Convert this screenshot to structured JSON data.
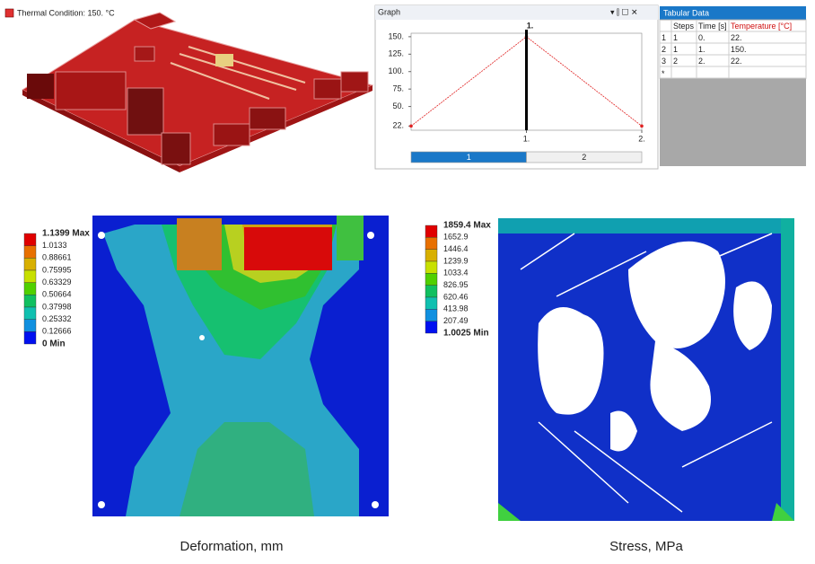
{
  "thermal_condition": {
    "label": "Thermal Condition: 150. °C",
    "color": "#e03030"
  },
  "graph": {
    "title": "Graph",
    "type": "line",
    "x": [
      0,
      1,
      2
    ],
    "values": [
      22,
      150,
      22
    ],
    "color": "#e02020",
    "xlim": [
      0,
      2
    ],
    "ylim": [
      16,
      155
    ],
    "yticks": [
      {
        "value": 150,
        "label": "150."
      },
      {
        "value": 125,
        "label": "125."
      },
      {
        "value": 100,
        "label": "100."
      },
      {
        "value": 75,
        "label": "75."
      },
      {
        "value": 50,
        "label": "50."
      },
      {
        "value": 22,
        "label": "22."
      }
    ],
    "xticks": [
      {
        "value": 1,
        "label": "1."
      },
      {
        "value": 2,
        "label": "2."
      }
    ],
    "marker": {
      "value": 1,
      "label": "1."
    },
    "steps": [
      "1",
      "2"
    ]
  },
  "table": {
    "title": "Tabular Data",
    "headers": [
      "Steps",
      "Time [s]",
      "Temperature [°C]"
    ],
    "rows": [
      [
        "1",
        "1",
        "0.",
        "22."
      ],
      [
        "2",
        "1",
        "1.",
        "150."
      ],
      [
        "3",
        "2",
        "2.",
        "22."
      ]
    ],
    "new_row": "*"
  },
  "deformation": {
    "caption": "Deformation, mm",
    "legend": [
      "1.1399 Max",
      "1.0133",
      "0.88661",
      "0.75995",
      "0.63329",
      "0.50664",
      "0.37998",
      "0.25332",
      "0.12666",
      "0 Min"
    ],
    "colors": [
      "#e00000",
      "#e87000",
      "#d8b000",
      "#c8e000",
      "#50d000",
      "#10c060",
      "#10c0b0",
      "#1090e0",
      "#0010f0"
    ]
  },
  "stress": {
    "caption": "Stress, MPa",
    "legend": [
      "1859.4 Max",
      "1652.9",
      "1446.4",
      "1239.9",
      "1033.4",
      "826.95",
      "620.46",
      "413.98",
      "207.49",
      "1.0025 Min"
    ],
    "colors": [
      "#e00000",
      "#e87000",
      "#d8b000",
      "#c8e000",
      "#50d000",
      "#10c060",
      "#10c0b0",
      "#1090e0",
      "#0010f0"
    ]
  }
}
